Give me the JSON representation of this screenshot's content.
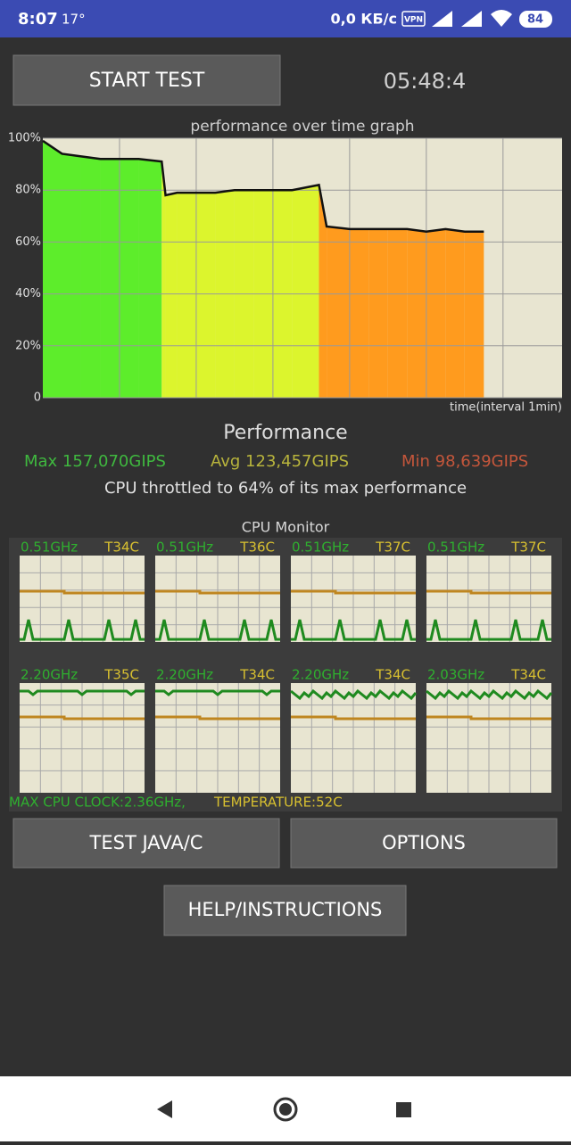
{
  "status_bar": {
    "time": "8:07",
    "temperature": "17°",
    "speed": "0,0 КБ/с",
    "vpn": "VPN",
    "battery": "84"
  },
  "start_button": "START TEST",
  "timer": "05:48:4",
  "performance_graph": {
    "title": "performance over time graph",
    "xlabel": "time(interval 1min)",
    "xlim": [
      0,
      6.77
    ],
    "ylim": [
      0,
      100
    ],
    "yticks": [
      {
        "value": 100,
        "label": "100%"
      },
      {
        "value": 80,
        "label": "80%"
      },
      {
        "value": 60,
        "label": "60%"
      },
      {
        "value": 40,
        "label": "40%"
      },
      {
        "value": 20,
        "label": "20%"
      },
      0
    ],
    "x": [
      0,
      0.25,
      0.5,
      0.75,
      1.0,
      1.25,
      1.55,
      1.6,
      1.75,
      2.0,
      2.25,
      2.5,
      2.75,
      3.0,
      3.25,
      3.6,
      3.7,
      4.0,
      4.25,
      4.5,
      4.75,
      5.0,
      5.25,
      5.5,
      5.75
    ],
    "values": [
      99,
      94,
      93,
      92,
      92,
      92,
      91,
      78,
      79,
      79,
      79,
      80,
      80,
      80,
      80,
      82,
      66,
      65,
      65,
      65,
      65,
      64,
      65,
      64,
      64
    ]
  },
  "performance": {
    "title": "Performance",
    "max": "Max 157,070GIPS",
    "avg": "Avg 123,457GIPS",
    "min": "Min 98,639GIPS",
    "summary": "CPU throttled to 64% of its max performance"
  },
  "cpu_monitor": {
    "title": "CPU Monitor",
    "cores": [
      {
        "frequency": "0.51GHz",
        "temperature": "T34C"
      },
      {
        "frequency": "0.51GHz",
        "temperature": "T36C"
      },
      {
        "frequency": "0.51GHz",
        "temperature": "T37C"
      },
      {
        "frequency": "0.51GHz",
        "temperature": "T37C"
      },
      {
        "frequency": "2.20GHz",
        "temperature": "T35C"
      },
      {
        "frequency": "2.20GHz",
        "temperature": "T34C"
      },
      {
        "frequency": "2.20GHz",
        "temperature": "T34C"
      },
      {
        "frequency": "2.03GHz",
        "temperature": "T34C"
      }
    ],
    "max_clock": "MAX CPU CLOCK:2.36GHz,",
    "max_temperature": "TEMPERATURE:52C"
  },
  "buttons": {
    "test": "TEST JAVA/C",
    "options": "OPTIONS",
    "help": "HELP/INSTRUCTIONS"
  }
}
